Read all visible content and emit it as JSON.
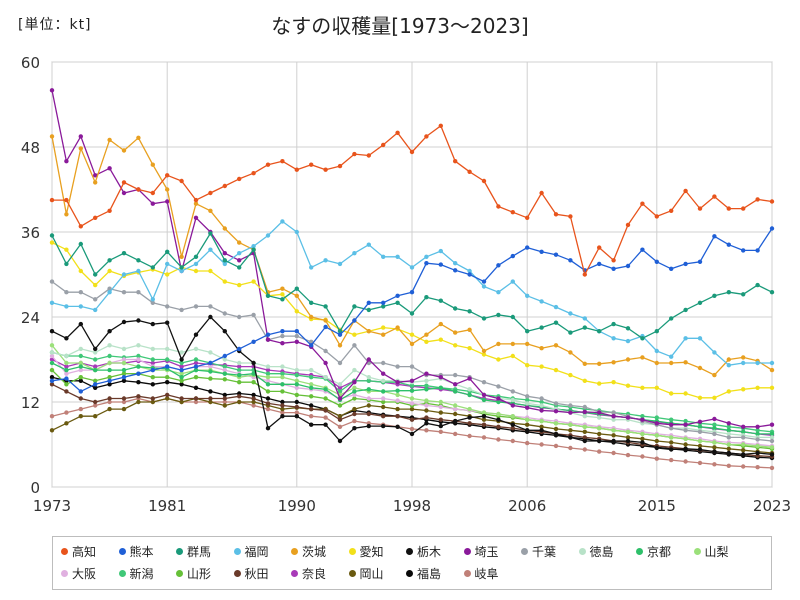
{
  "header": {
    "unit": "[単位：kt]",
    "title": "なすの収穫量[1973〜2023]"
  },
  "chart_data": {
    "type": "line",
    "title": "なすの収穫量[1973〜2023]",
    "unit": "[単位：kt]",
    "xlim": [
      1973,
      2023
    ],
    "ylim": [
      0,
      60
    ],
    "x_ticks": [
      "1973",
      "1981",
      "1990",
      "1998",
      "2006",
      "2015",
      "2023"
    ],
    "y_ticks": [
      "0",
      "12",
      "24",
      "36",
      "48",
      "60"
    ],
    "grid": true,
    "legend_position": "bottom",
    "x": [
      1973,
      1974,
      1975,
      1976,
      1977,
      1978,
      1979,
      1980,
      1981,
      1982,
      1983,
      1984,
      1985,
      1986,
      1987,
      1988,
      1989,
      1990,
      1991,
      1992,
      1993,
      1994,
      1995,
      1996,
      1997,
      1998,
      1999,
      2000,
      2001,
      2002,
      2003,
      2004,
      2005,
      2006,
      2007,
      2008,
      2009,
      2010,
      2011,
      2012,
      2013,
      2014,
      2015,
      2016,
      2017,
      2018,
      2019,
      2020,
      2021,
      2022,
      2023
    ],
    "series": [
      {
        "name": "高知",
        "color": "#e8541c",
        "values": [
          40.5,
          40.5,
          36.8,
          38,
          39,
          43,
          42,
          41.5,
          44,
          43.2,
          40.5,
          41.5,
          42.5,
          43.5,
          44.3,
          45.5,
          46,
          44.8,
          45.5,
          44.8,
          45.3,
          47,
          46.8,
          48.3,
          50,
          47.3,
          49.5,
          51,
          46,
          44.5,
          43.2,
          39.6,
          38.8,
          38,
          41.5,
          38.5,
          38.2,
          30,
          33.8,
          32,
          37,
          40,
          38.2,
          39,
          41.8,
          39.3,
          41,
          39.3,
          39.3,
          40.6,
          40.3
        ]
      },
      {
        "name": "熊本",
        "color": "#1f5fd6",
        "values": [
          15,
          15.3,
          13.5,
          14.5,
          15,
          15.5,
          16,
          16.5,
          17,
          16.5,
          17,
          17.5,
          18.5,
          19.5,
          20.5,
          21.5,
          22,
          22,
          20,
          22.6,
          21.5,
          23.5,
          26,
          26,
          27,
          27.5,
          31.6,
          31.4,
          30.6,
          30,
          29,
          31.3,
          32.6,
          33.8,
          33.2,
          32.8,
          32,
          30.6,
          31.5,
          30.8,
          31.2,
          33.5,
          31.8,
          30.8,
          31.5,
          31.8,
          35.4,
          34.2,
          33.4,
          33.4,
          36.5
        ]
      },
      {
        "name": "群馬",
        "color": "#1a9a7a",
        "values": [
          35.5,
          31.5,
          34.3,
          30,
          32,
          33,
          32,
          31,
          33.2,
          31,
          32.5,
          35.8,
          32,
          31,
          33.5,
          27,
          26.5,
          28,
          26,
          25.5,
          22,
          25.5,
          25,
          25.5,
          26,
          24.5,
          26.8,
          26.3,
          25.2,
          24.8,
          23.8,
          24.3,
          24,
          22,
          22.5,
          23.2,
          21.8,
          22.5,
          22,
          23,
          22.4,
          21,
          22,
          23.8,
          25,
          26,
          27,
          27.5,
          27.2,
          28.5,
          27.5
        ]
      },
      {
        "name": "福岡",
        "color": "#5bbfe6",
        "values": [
          26,
          25.5,
          25.5,
          25,
          27.5,
          30,
          30.5,
          26.5,
          31.5,
          30.5,
          31.5,
          33.5,
          31.5,
          33,
          34,
          35.5,
          37.5,
          36,
          31,
          32,
          31.5,
          33,
          34.2,
          32.5,
          32.5,
          31,
          32.5,
          33.3,
          31.6,
          30.5,
          28.3,
          27.5,
          29,
          27,
          26.2,
          25.4,
          24.5,
          23.8,
          22,
          21,
          20.6,
          21.3,
          19.2,
          18.4,
          21,
          21,
          19,
          17.2,
          17.5,
          17.5,
          17.5
        ]
      },
      {
        "name": "茨城",
        "color": "#e8a020",
        "values": [
          49.5,
          38.5,
          47.8,
          43,
          49,
          47.5,
          49.3,
          45.5,
          42,
          32.5,
          40,
          39,
          36.5,
          34.5,
          33.5,
          27.5,
          28,
          27,
          24,
          23.5,
          20,
          23.5,
          22,
          21.5,
          22.5,
          20.2,
          21.5,
          23,
          21.8,
          22.2,
          19.2,
          20.2,
          20.2,
          20.2,
          19.6,
          20,
          19,
          17.4,
          17.4,
          17.6,
          18,
          18.3,
          17.5,
          17.5,
          17.6,
          16.8,
          15.8,
          18,
          18.3,
          17.8,
          16.5
        ]
      },
      {
        "name": "愛知",
        "color": "#f2e01a",
        "values": [
          34.5,
          33.5,
          30.5,
          28.5,
          30.5,
          29.8,
          30.3,
          30.7,
          30,
          31,
          30.5,
          30.5,
          29,
          28.5,
          29,
          27,
          27.2,
          24.8,
          23.7,
          23.6,
          22.2,
          21.5,
          22,
          22.5,
          22.3,
          21.5,
          20.5,
          20.8,
          20,
          19.6,
          18.7,
          18,
          18.5,
          17.2,
          17,
          16.5,
          15.8,
          15,
          14.6,
          14.8,
          14.3,
          14,
          14,
          13.2,
          13.2,
          12.6,
          12.6,
          13.5,
          13.8,
          14,
          14
        ]
      },
      {
        "name": "栃木",
        "color": "#111111",
        "values": [
          22,
          21,
          23,
          19.5,
          22,
          23.3,
          23.5,
          23,
          23.2,
          18,
          21.5,
          24,
          22,
          19.2,
          17.5,
          8.3,
          10,
          10,
          8.8,
          8.8,
          6.5,
          8.3,
          8.6,
          8.6,
          8.5,
          7.5,
          9,
          8.6,
          9.3,
          9.8,
          10,
          9.5,
          8.8,
          8,
          8,
          7.5,
          7,
          6.5,
          6.5,
          6.5,
          6.5,
          6.3,
          5.5,
          5.3,
          5.4,
          5.3,
          5,
          4.8,
          4.6,
          4.8,
          4.6
        ]
      },
      {
        "name": "埼玉",
        "color": "#8a1a9a",
        "values": [
          56,
          46,
          49.5,
          44,
          45,
          41.5,
          42,
          40,
          40.3,
          30.5,
          38,
          36,
          33,
          32,
          33,
          20.8,
          20.3,
          20.5,
          19.8,
          17.5,
          12.5,
          14.8,
          18,
          16,
          14.8,
          15,
          16,
          15.5,
          14.5,
          15.3,
          13,
          12.5,
          11.5,
          11.2,
          10.8,
          10.7,
          10.5,
          10.6,
          10.5,
          10,
          9.8,
          9.5,
          9,
          8.8,
          8.8,
          9.2,
          9.6,
          9,
          8.5,
          8.5,
          8.8
        ]
      },
      {
        "name": "千葉",
        "color": "#9aa0a8",
        "values": [
          29,
          27.5,
          27.5,
          26.5,
          28,
          27.5,
          27.5,
          26,
          25.5,
          25,
          25.5,
          25.5,
          24.5,
          24,
          24.3,
          20.8,
          21.3,
          21.3,
          20.5,
          19.2,
          17.5,
          20,
          17.5,
          17.5,
          17,
          17,
          15.8,
          15.8,
          15.8,
          15.5,
          14.8,
          14.2,
          13.5,
          12.8,
          12.5,
          11.8,
          11.5,
          11.3,
          10.6,
          10.5,
          10,
          9.3,
          8.8,
          8.3,
          8,
          7.8,
          7.5,
          7,
          7,
          6.7,
          6.5
        ]
      },
      {
        "name": "徳島",
        "color": "#b8e2c8",
        "values": [
          19,
          18.5,
          19.5,
          19,
          20,
          19.5,
          20,
          19.5,
          19.5,
          19,
          19.5,
          19,
          18,
          17.5,
          17.5,
          17,
          17,
          16.5,
          16.5,
          15.5,
          14.5,
          16.5,
          15.5,
          15,
          15,
          14.8,
          15,
          15.3,
          14.5,
          13.8,
          13,
          12.5,
          12.3,
          11.8,
          11.5,
          11,
          10.5,
          10,
          9.8,
          9.5,
          9.5,
          9,
          8.8,
          8.3,
          8.3,
          8,
          7.8,
          7.5,
          7.3,
          7,
          7
        ]
      },
      {
        "name": "京都",
        "color": "#2ec06a",
        "values": [
          17.5,
          16.5,
          17,
          16.5,
          16.5,
          16.5,
          17,
          16.8,
          16.7,
          15.5,
          16.5,
          16.3,
          16,
          15.8,
          16,
          14.5,
          14.5,
          14.5,
          14,
          13.8,
          12.3,
          13.5,
          13.8,
          13.5,
          13.6,
          13.6,
          13.8,
          14,
          13.5,
          13,
          12.3,
          12,
          11.8,
          11.5,
          11.3,
          11,
          10.8,
          10.5,
          10.3,
          10,
          9.8,
          9.5,
          9.3,
          9,
          8.8,
          8.5,
          8.3,
          8,
          7.8,
          7.5,
          7.5
        ]
      },
      {
        "name": "山梨",
        "color": "#9be07a",
        "values": [
          20,
          17.5,
          17.5,
          16.5,
          17.5,
          17.5,
          17,
          16.5,
          16.5,
          16,
          16.5,
          16.5,
          16,
          15.5,
          15.8,
          15.5,
          15.5,
          15,
          14.5,
          14,
          13,
          14,
          13.5,
          13.5,
          13,
          12.5,
          12.2,
          12,
          11.5,
          11,
          10.5,
          10.3,
          10,
          9.5,
          9.3,
          9,
          8.8,
          8.5,
          8.3,
          8,
          7.8,
          7.5,
          7.3,
          7,
          6.8,
          6.5,
          6.3,
          6,
          6,
          5.8,
          5.6
        ]
      },
      {
        "name": "大阪",
        "color": "#e0b0e0",
        "values": [
          18.5,
          16,
          16.5,
          16.5,
          17.5,
          18,
          18,
          17,
          17,
          16.5,
          17,
          17,
          16.5,
          16,
          15.5,
          15,
          14.5,
          14,
          13.8,
          13.5,
          12.5,
          13,
          12.5,
          12.5,
          12.2,
          11.8,
          11.5,
          11.3,
          11,
          10.8,
          10.5,
          10.3,
          10,
          9.8,
          9.5,
          9.3,
          9,
          8.8,
          8.5,
          8.3,
          8,
          7.8,
          7.5,
          7.3,
          7,
          6.8,
          6.5,
          6.3,
          6.2,
          6,
          5.8
        ]
      },
      {
        "name": "新潟",
        "color": "#40c878",
        "values": [
          19,
          18.5,
          18.5,
          18,
          18.5,
          18.3,
          18.5,
          18,
          18,
          17.5,
          18,
          17.5,
          17,
          16.5,
          16.5,
          16,
          16,
          15.8,
          15.5,
          15.3,
          13.5,
          15,
          15,
          14.8,
          14.8,
          14.3,
          14.3,
          14,
          13.8,
          13.5,
          13,
          12.8,
          12.5,
          12.3,
          12,
          11.5,
          11.3,
          11,
          10.8,
          10.5,
          10.3,
          10,
          9.8,
          9.5,
          9.3,
          9,
          8.8,
          8.5,
          8.3,
          8,
          7.8
        ]
      },
      {
        "name": "山形",
        "color": "#66c038",
        "values": [
          16.5,
          14.5,
          15.5,
          15,
          15.5,
          16,
          16,
          15.5,
          15.5,
          15,
          15.5,
          15.3,
          15.2,
          14.8,
          14.8,
          13.5,
          13.5,
          13,
          12.8,
          12.5,
          11.5,
          12.5,
          12.3,
          12,
          12,
          11.5,
          11.8,
          11.5,
          11,
          10.8,
          10.3,
          10,
          9.8,
          9.5,
          9.3,
          9,
          8.8,
          8.5,
          8.3,
          8,
          7.8,
          7.5,
          7.3,
          7,
          6.8,
          6.5,
          6.3,
          6,
          5.8,
          5.6,
          5.4
        ]
      },
      {
        "name": "秋田",
        "color": "#6a3a2a",
        "values": [
          14.5,
          13.5,
          12.5,
          12,
          12.5,
          12.5,
          12.8,
          12.5,
          13,
          12.5,
          12.5,
          12.5,
          12.5,
          12.8,
          12.5,
          11.8,
          11.5,
          11.3,
          11,
          10.8,
          9.5,
          10.3,
          10.3,
          10,
          10,
          9.5,
          9.8,
          9.5,
          9.3,
          9,
          8.8,
          8.5,
          8.3,
          8,
          7.8,
          7.5,
          7.3,
          7,
          6.8,
          6.5,
          6.3,
          6,
          5.8,
          5.6,
          5.4,
          5.2,
          5,
          4.8,
          4.6,
          4.4,
          4.3
        ]
      },
      {
        "name": "奈良",
        "color": "#a83ab8",
        "values": [
          18,
          17,
          17.5,
          17,
          17.5,
          17.5,
          17.8,
          17.5,
          17.8,
          17,
          17.5,
          17.3,
          17.2,
          17,
          17,
          16.5,
          16.3,
          16,
          15.8,
          15.5,
          14,
          15,
          15,
          14.8,
          14.5,
          14.2,
          14,
          13.8,
          13.5,
          13,
          12.5,
          12.2,
          11.8,
          11.5,
          11.2,
          11,
          10.8,
          10.5,
          10.2,
          10,
          9.8,
          9.5,
          9.2,
          9,
          8.8,
          8.5,
          8.2,
          8,
          7.8,
          7.5,
          7.3
        ]
      },
      {
        "name": "岡山",
        "color": "#6a5a10",
        "values": [
          8,
          9,
          10,
          10,
          11,
          11,
          12,
          12,
          12.5,
          12,
          12.5,
          12,
          11.5,
          12,
          12,
          11.5,
          11,
          11.2,
          11,
          11,
          10,
          11,
          11.5,
          11.3,
          11,
          11,
          10.8,
          10.5,
          10.3,
          10,
          9.5,
          9.3,
          9,
          8.8,
          8.5,
          8.2,
          8,
          7.8,
          7.5,
          7.3,
          7,
          6.8,
          6.5,
          6.3,
          6,
          5.8,
          5.6,
          5.4,
          5.2,
          5,
          4.8
        ]
      },
      {
        "name": "福島",
        "color": "#0a0a0a",
        "values": [
          15.5,
          15,
          15,
          14,
          14.5,
          15,
          14.8,
          14.5,
          14.8,
          14.5,
          14,
          13.5,
          13,
          13.2,
          13,
          12.5,
          12,
          12,
          11.5,
          11,
          10,
          10.8,
          10.5,
          10.2,
          10,
          9.8,
          9.5,
          9.2,
          9,
          8.8,
          8.5,
          8.3,
          8,
          7.8,
          7.5,
          7.3,
          7,
          6.8,
          6.5,
          6.3,
          6,
          5.8,
          5.6,
          5.4,
          5.2,
          5,
          4.8,
          4.6,
          4.4,
          4.2,
          4.1
        ]
      },
      {
        "name": "岐阜",
        "color": "#c08078",
        "values": [
          10,
          10.5,
          11,
          11.5,
          12,
          12,
          12.5,
          12,
          12.5,
          12,
          12,
          12,
          12,
          12,
          11.5,
          11,
          10.5,
          10.5,
          10,
          9.8,
          8.5,
          9.3,
          9,
          8.8,
          8.5,
          8.2,
          8,
          7.8,
          7.5,
          7.2,
          7,
          6.7,
          6.5,
          6.2,
          6,
          5.8,
          5.5,
          5.3,
          5,
          4.8,
          4.5,
          4.3,
          4,
          3.8,
          3.6,
          3.4,
          3.2,
          3,
          2.9,
          2.8,
          2.7
        ]
      }
    ]
  }
}
